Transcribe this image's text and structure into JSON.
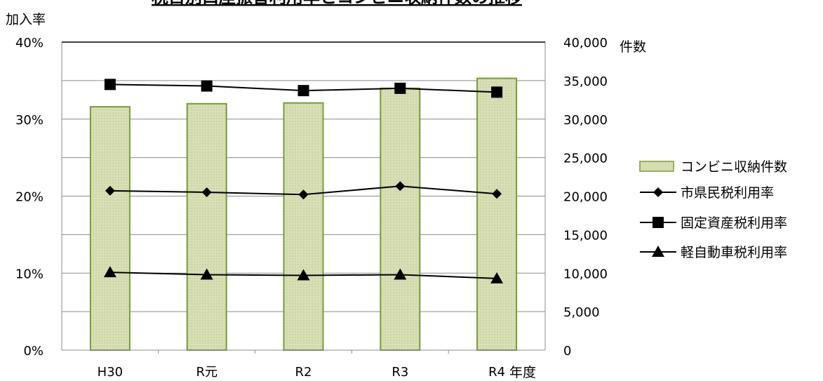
{
  "chart_data": {
    "type": "bar",
    "title": "税目別口座振替利用率とコンビニ収納件数の推移",
    "categories": [
      "H30",
      "R元",
      "R2",
      "R3",
      "R4"
    ],
    "x_unit_label": "年度",
    "y_left": {
      "label": "加入率",
      "ylim": [
        0,
        0.4
      ],
      "ticks": [
        0,
        0.1,
        0.2,
        0.3,
        0.4
      ],
      "tick_labels": [
        "0%",
        "10%",
        "20%",
        "30%",
        "40%"
      ]
    },
    "y_right": {
      "label": "件数",
      "ylim": [
        0,
        40000
      ],
      "ticks": [
        0,
        5000,
        10000,
        15000,
        20000,
        25000,
        30000,
        35000,
        40000
      ],
      "tick_labels": [
        "0",
        "5,000",
        "10,000",
        "15,000",
        "20,000",
        "25,000",
        "30,000",
        "35,000",
        "40,000"
      ]
    },
    "grid": true,
    "legend_position": "right",
    "series": [
      {
        "name": "コンビニ収納件数",
        "type": "bar",
        "axis": "right",
        "values": [
          31600,
          32000,
          32100,
          34000,
          35300
        ],
        "color": "#d8dfb6",
        "edge": "#7a9a3a"
      },
      {
        "name": "市県民税利用率",
        "type": "line",
        "axis": "left",
        "marker": "diamond",
        "values": [
          0.207,
          0.205,
          0.202,
          0.213,
          0.203
        ],
        "color": "#000000"
      },
      {
        "name": "固定資産税利用率",
        "type": "line",
        "axis": "left",
        "marker": "square",
        "values": [
          0.345,
          0.343,
          0.337,
          0.34,
          0.335
        ],
        "color": "#000000"
      },
      {
        "name": "軽自動車税利用率",
        "type": "line",
        "axis": "left",
        "marker": "triangle",
        "values": [
          0.101,
          0.098,
          0.097,
          0.098,
          0.093
        ],
        "color": "#000000"
      }
    ]
  }
}
